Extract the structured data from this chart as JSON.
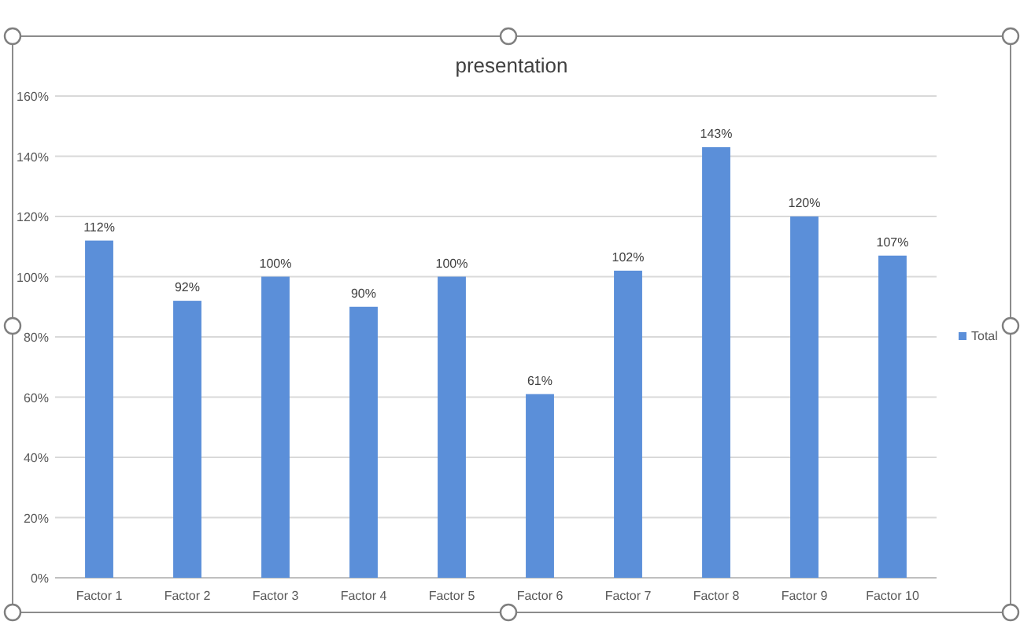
{
  "chart_data": {
    "type": "bar",
    "title": "presentation",
    "categories": [
      "Factor 1",
      "Factor 2",
      "Factor 3",
      "Factor 4",
      "Factor 5",
      "Factor 6",
      "Factor 7",
      "Factor 8",
      "Factor 9",
      "Factor 10"
    ],
    "series": [
      {
        "name": "Total",
        "color": "#5b8fd9",
        "values": [
          112,
          92,
          100,
          90,
          100,
          61,
          102,
          143,
          120,
          107
        ]
      }
    ],
    "value_labels": [
      "112%",
      "92%",
      "100%",
      "90%",
      "100%",
      "61%",
      "102%",
      "143%",
      "120%",
      "107%"
    ],
    "ylim": [
      0,
      160
    ],
    "yticks": [
      {
        "value": 0,
        "label": "0%"
      },
      {
        "value": 20,
        "label": "20%"
      },
      {
        "value": 40,
        "label": "40%"
      },
      {
        "value": 60,
        "label": "60%"
      },
      {
        "value": 80,
        "label": "80%"
      },
      {
        "value": 100,
        "label": "100%"
      },
      {
        "value": 120,
        "label": "120%"
      },
      {
        "value": 140,
        "label": "140%"
      },
      {
        "value": 160,
        "label": "160%"
      }
    ],
    "grid": "y",
    "legend": "right"
  }
}
